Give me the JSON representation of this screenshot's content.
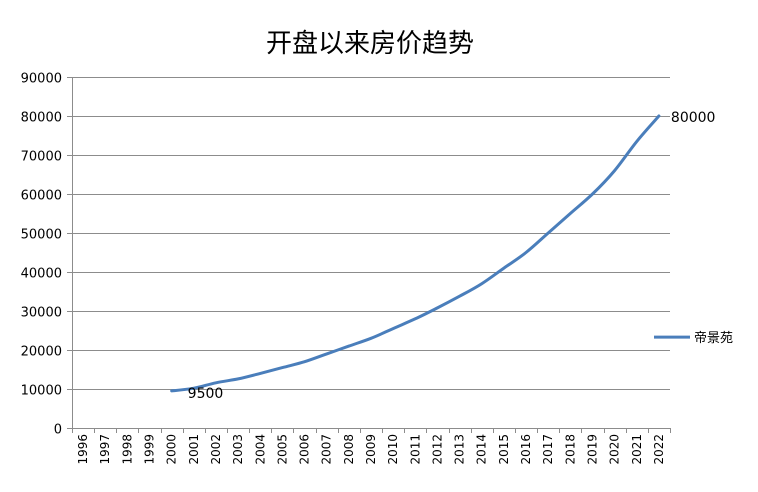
{
  "chart_data": {
    "type": "line",
    "title": "开盘以来房价趋势",
    "xlabel": "",
    "ylabel": "",
    "ylim": [
      0,
      90000
    ],
    "yticks": [
      0,
      10000,
      20000,
      30000,
      40000,
      50000,
      60000,
      70000,
      80000,
      90000
    ],
    "categories": [
      "1996",
      "1997",
      "1998",
      "1999",
      "2000",
      "2001",
      "2002",
      "2003",
      "2004",
      "2005",
      "2006",
      "2007",
      "2008",
      "2009",
      "2010",
      "2011",
      "2012",
      "2013",
      "2014",
      "2015",
      "2016",
      "2017",
      "2018",
      "2019",
      "2020",
      "2021",
      "2022"
    ],
    "series": [
      {
        "name": "帝景苑",
        "color": "#4a7ebb",
        "values": [
          null,
          null,
          null,
          null,
          9500,
          10200,
          11600,
          12600,
          14000,
          15500,
          17000,
          19000,
          21000,
          23000,
          25500,
          28000,
          30800,
          33800,
          37000,
          41000,
          45000,
          50000,
          55000,
          60000,
          66000,
          73500,
          80000
        ]
      }
    ],
    "data_labels": [
      {
        "category": "2000",
        "text": "9500"
      },
      {
        "category": "2022",
        "text": "80000"
      }
    ],
    "grid": true,
    "legend": "right"
  }
}
